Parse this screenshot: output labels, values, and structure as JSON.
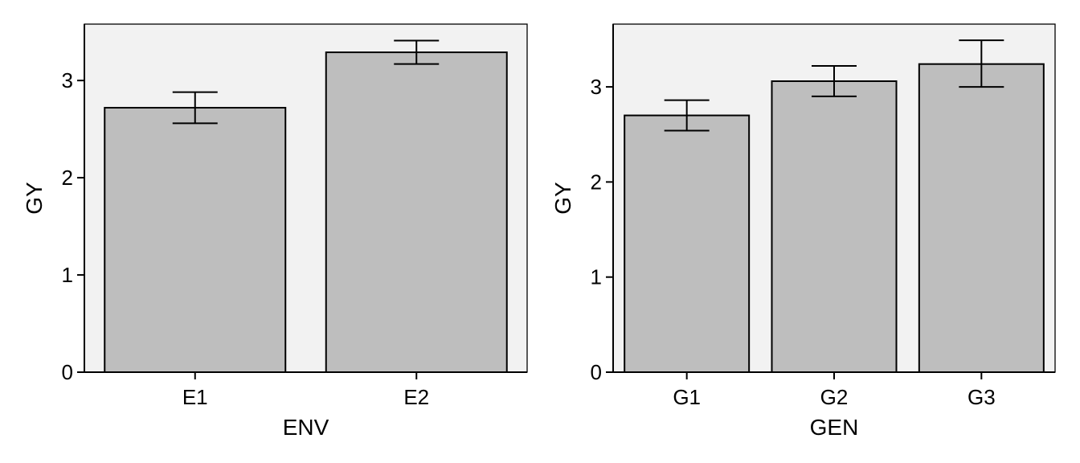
{
  "chart_data": [
    {
      "type": "bar",
      "xlabel": "ENV",
      "ylabel": "GY",
      "categories": [
        "E1",
        "E2"
      ],
      "values": [
        2.72,
        3.29
      ],
      "error_lower": [
        2.56,
        3.17
      ],
      "error_upper": [
        2.88,
        3.41
      ],
      "ylim": [
        0,
        3.58
      ],
      "yticks": [
        0,
        1,
        2,
        3
      ],
      "grid": false,
      "colors": {
        "panel_background": "#f2f2f2",
        "bar_fill": "#bebebe",
        "stroke": "#000000"
      }
    },
    {
      "type": "bar",
      "xlabel": "GEN",
      "ylabel": "GY",
      "categories": [
        "G1",
        "G2",
        "G3"
      ],
      "values": [
        2.7,
        3.06,
        3.24
      ],
      "error_lower": [
        2.54,
        2.9,
        3.0
      ],
      "error_upper": [
        2.86,
        3.22,
        3.49
      ],
      "ylim": [
        0,
        3.66
      ],
      "yticks": [
        0,
        1,
        2,
        3
      ],
      "grid": false,
      "colors": {
        "panel_background": "#f2f2f2",
        "bar_fill": "#bebebe",
        "stroke": "#000000"
      }
    }
  ]
}
